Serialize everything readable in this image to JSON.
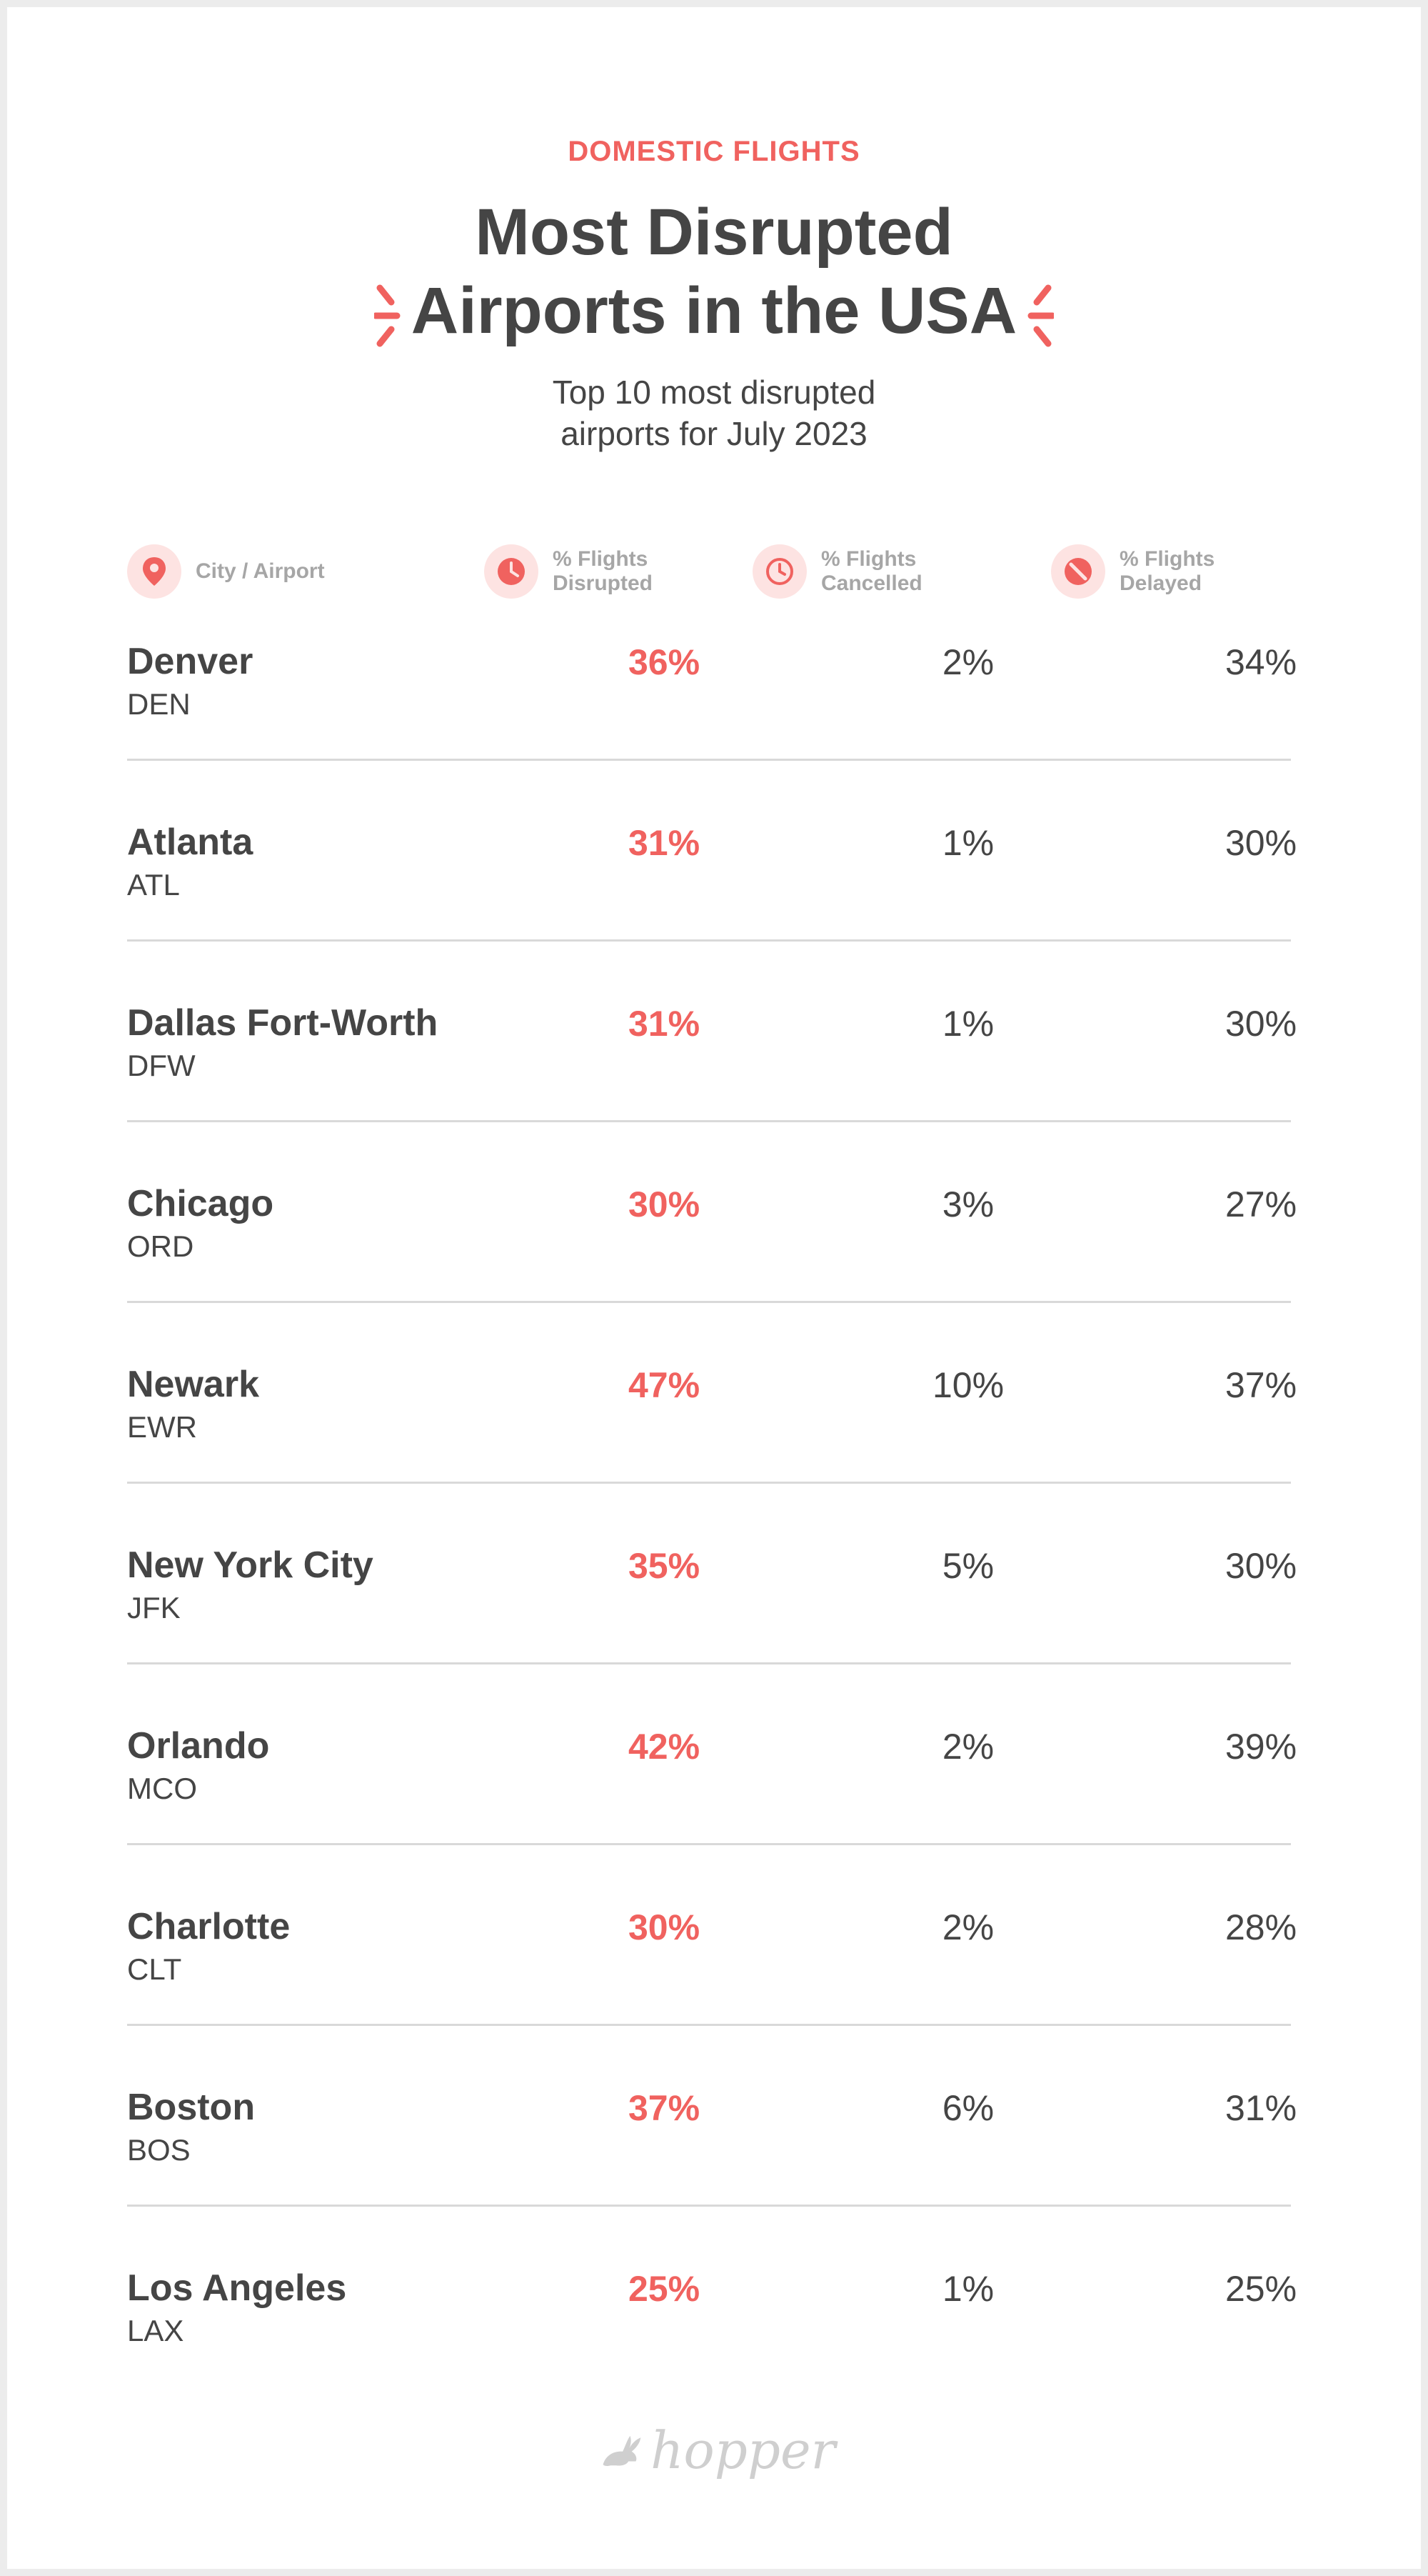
{
  "eyebrow": "DOMESTIC FLIGHTS",
  "title_line1": "Most Disrupted",
  "title_line2": "Airports in the USA",
  "subtitle_line1": "Top 10 most disrupted",
  "subtitle_line2": "airports for July 2023",
  "headers": {
    "city": "City / Airport",
    "disrupted": [
      "% Flights",
      "Disrupted"
    ],
    "cancelled": [
      "% Flights",
      "Cancelled"
    ],
    "delayed": [
      "% Flights",
      "Delayed"
    ]
  },
  "icons": {
    "city": "location-pin-icon",
    "disrupted": "pie-clock-icon",
    "cancelled": "clock-icon",
    "delayed": "no-entry-icon"
  },
  "colors": {
    "accent": "#f0625f",
    "accent_light": "#fde3e2",
    "text": "#454545",
    "muted": "#a6a6a6"
  },
  "chart_data": {
    "type": "table",
    "columns": [
      "City / Airport",
      "% Flights Disrupted",
      "% Flights Cancelled",
      "% Flights Delayed"
    ],
    "rows": [
      {
        "city": "Denver",
        "code": "DEN",
        "disrupted": "36%",
        "cancelled": "2%",
        "delayed": "34%"
      },
      {
        "city": "Atlanta",
        "code": "ATL",
        "disrupted": "31%",
        "cancelled": "1%",
        "delayed": "30%"
      },
      {
        "city": "Dallas Fort-Worth",
        "code": "DFW",
        "disrupted": "31%",
        "cancelled": "1%",
        "delayed": "30%"
      },
      {
        "city": "Chicago",
        "code": "ORD",
        "disrupted": "30%",
        "cancelled": "3%",
        "delayed": "27%"
      },
      {
        "city": "Newark",
        "code": "EWR",
        "disrupted": "47%",
        "cancelled": "10%",
        "delayed": "37%"
      },
      {
        "city": "New York City",
        "code": "JFK",
        "disrupted": "35%",
        "cancelled": "5%",
        "delayed": "30%"
      },
      {
        "city": "Orlando",
        "code": "MCO",
        "disrupted": "42%",
        "cancelled": "2%",
        "delayed": "39%"
      },
      {
        "city": "Charlotte",
        "code": "CLT",
        "disrupted": "30%",
        "cancelled": "2%",
        "delayed": "28%"
      },
      {
        "city": "Boston",
        "code": "BOS",
        "disrupted": "37%",
        "cancelled": "6%",
        "delayed": "31%"
      },
      {
        "city": "Los Angeles",
        "code": "LAX",
        "disrupted": "25%",
        "cancelled": "1%",
        "delayed": "25%"
      }
    ]
  },
  "logo": {
    "text": "hopper",
    "icon": "bunny-icon"
  }
}
